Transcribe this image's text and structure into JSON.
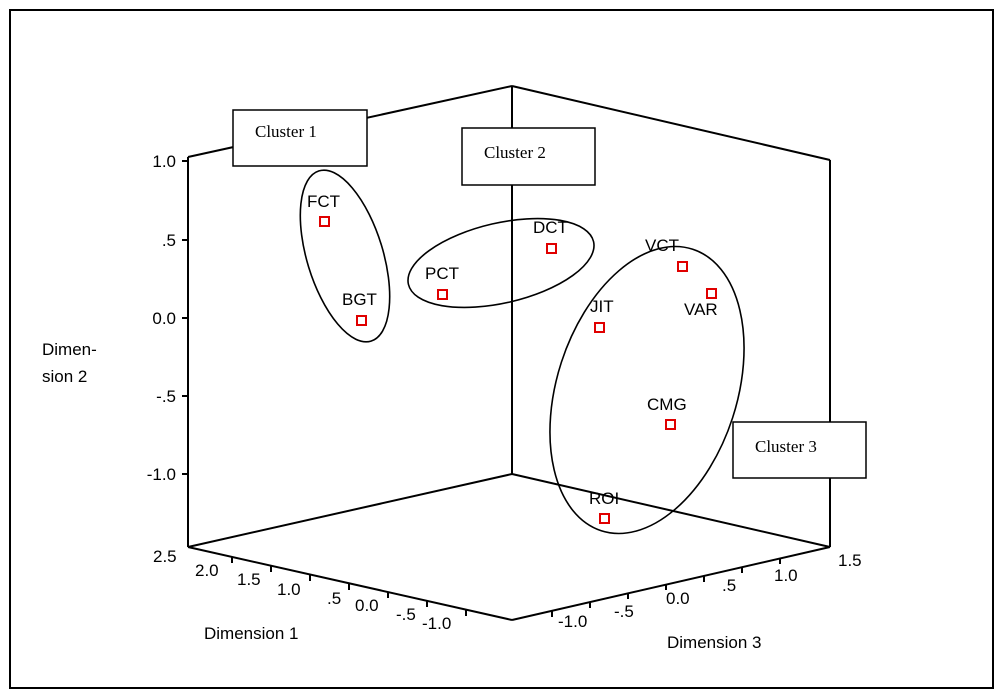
{
  "chart_data": {
    "type": "scatter",
    "subtype": "3d-scatter",
    "title": "",
    "axes": {
      "y": {
        "label_line1": "Dimen-",
        "label_line2": "sion 2",
        "ticks": [
          "1.0",
          ".5",
          "0.0",
          "-.5",
          "-1.0"
        ],
        "range": [
          -1.0,
          1.0
        ]
      },
      "x": {
        "label": "Dimension 1",
        "ticks": [
          "2.5",
          "2.0",
          "1.5",
          "1.0",
          ".5",
          "0.0",
          "-.5",
          "-1.0"
        ],
        "range": [
          -1.0,
          2.5
        ]
      },
      "z": {
        "label": "Dimension 3",
        "ticks": [
          "-1.0",
          "-.5",
          "0.0",
          ".5",
          "1.0",
          "1.5"
        ],
        "range": [
          -1.0,
          1.5
        ]
      }
    },
    "points": [
      {
        "label": "FCT"
      },
      {
        "label": "BGT"
      },
      {
        "label": "PCT"
      },
      {
        "label": "DCT"
      },
      {
        "label": "VCT"
      },
      {
        "label": "VAR"
      },
      {
        "label": "JIT"
      },
      {
        "label": "CMG"
      },
      {
        "label": "ROI"
      }
    ],
    "clusters": [
      {
        "name": "Cluster 1",
        "members": [
          "FCT",
          "BGT"
        ]
      },
      {
        "name": "Cluster 2",
        "members": [
          "PCT",
          "DCT"
        ]
      },
      {
        "name": "Cluster 3",
        "members": [
          "VCT",
          "VAR",
          "JIT",
          "CMG",
          "ROI"
        ]
      }
    ],
    "marker_color": "#e00000",
    "grid": false
  }
}
